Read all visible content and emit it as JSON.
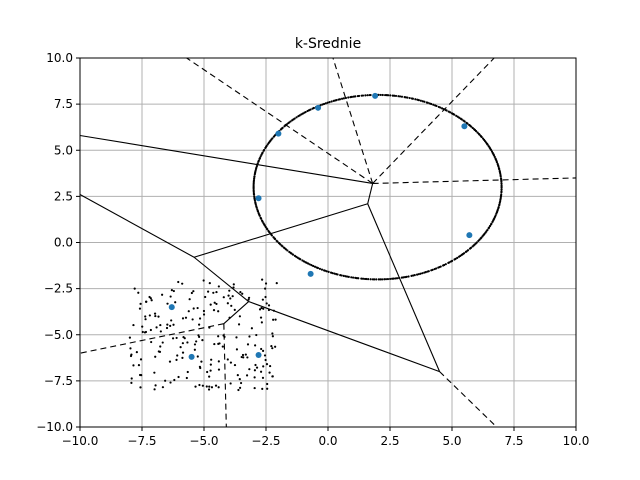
{
  "chart_data": {
    "type": "scatter",
    "title": "k-Srednie",
    "xlabel": "",
    "ylabel": "",
    "xlim": [
      -10,
      10
    ],
    "ylim": [
      -10,
      10
    ],
    "grid": true,
    "xticks": [
      -10,
      -7.5,
      -5,
      -2.5,
      0,
      2.5,
      5,
      7.5,
      10
    ],
    "yticks": [
      -10,
      -7.5,
      -5,
      -2.5,
      0,
      2.5,
      5,
      7.5,
      10
    ],
    "xtick_labels": [
      "−10.0",
      "−7.5",
      "−5.0",
      "−2.5",
      "0.0",
      "2.5",
      "5.0",
      "7.5",
      "10.0"
    ],
    "ytick_labels": [
      "−10.0",
      "−7.5",
      "−5.0",
      "−2.5",
      "0.0",
      "2.5",
      "5.0",
      "7.5",
      "10.0"
    ],
    "ellipse_cluster": {
      "center": [
        2,
        3
      ],
      "radius_x": 5,
      "radius_y": 5,
      "n_points": 400
    },
    "square_cluster": {
      "x_range": [
        -8,
        -2
      ],
      "y_range": [
        -8,
        -2
      ],
      "n_points": 220
    },
    "centroids": [
      [
        1.9,
        7.95
      ],
      [
        -0.4,
        7.3
      ],
      [
        -2.0,
        5.9
      ],
      [
        5.5,
        6.3
      ],
      [
        -2.8,
        2.4
      ],
      [
        5.7,
        0.4
      ],
      [
        -0.7,
        -1.7
      ],
      [
        -6.3,
        -3.5
      ],
      [
        -5.5,
        -6.2
      ],
      [
        -2.8,
        -6.1
      ]
    ],
    "voronoi_vertices": [
      [
        1.8,
        3.2
      ],
      [
        1.6,
        2.1
      ],
      [
        -5.4,
        -0.8
      ],
      [
        -3.2,
        -3.2
      ],
      [
        4.5,
        -7.0
      ],
      [
        -4.2,
        -4.4
      ]
    ],
    "voronoi_finite_edges": [
      [
        [
          1.8,
          3.2
        ],
        [
          1.6,
          2.1
        ]
      ],
      [
        [
          1.6,
          2.1
        ],
        [
          -5.4,
          -0.8
        ]
      ],
      [
        [
          1.6,
          2.1
        ],
        [
          4.5,
          -7.0
        ]
      ],
      [
        [
          -5.4,
          -0.8
        ],
        [
          -3.2,
          -3.2
        ]
      ],
      [
        [
          -3.2,
          -3.2
        ],
        [
          4.5,
          -7.0
        ]
      ],
      [
        [
          -3.2,
          -3.2
        ],
        [
          -4.2,
          -4.4
        ]
      ],
      [
        [
          1.8,
          3.2
        ],
        [
          -10,
          5.8
        ]
      ],
      [
        [
          -5.4,
          -0.8
        ],
        [
          -10,
          2.6
        ]
      ]
    ],
    "voronoi_infinite_edges": [
      [
        [
          1.8,
          3.2
        ],
        [
          -5.7,
          10
        ]
      ],
      [
        [
          1.8,
          3.2
        ],
        [
          0.2,
          10
        ]
      ],
      [
        [
          1.8,
          3.2
        ],
        [
          6.7,
          10
        ]
      ],
      [
        [
          1.8,
          3.2
        ],
        [
          10,
          3.5
        ]
      ],
      [
        [
          4.5,
          -7.0
        ],
        [
          6.8,
          -10
        ]
      ],
      [
        [
          -4.2,
          -4.4
        ],
        [
          -4.1,
          -10
        ]
      ],
      [
        [
          -4.2,
          -4.4
        ],
        [
          -10,
          -6.0
        ]
      ]
    ]
  }
}
